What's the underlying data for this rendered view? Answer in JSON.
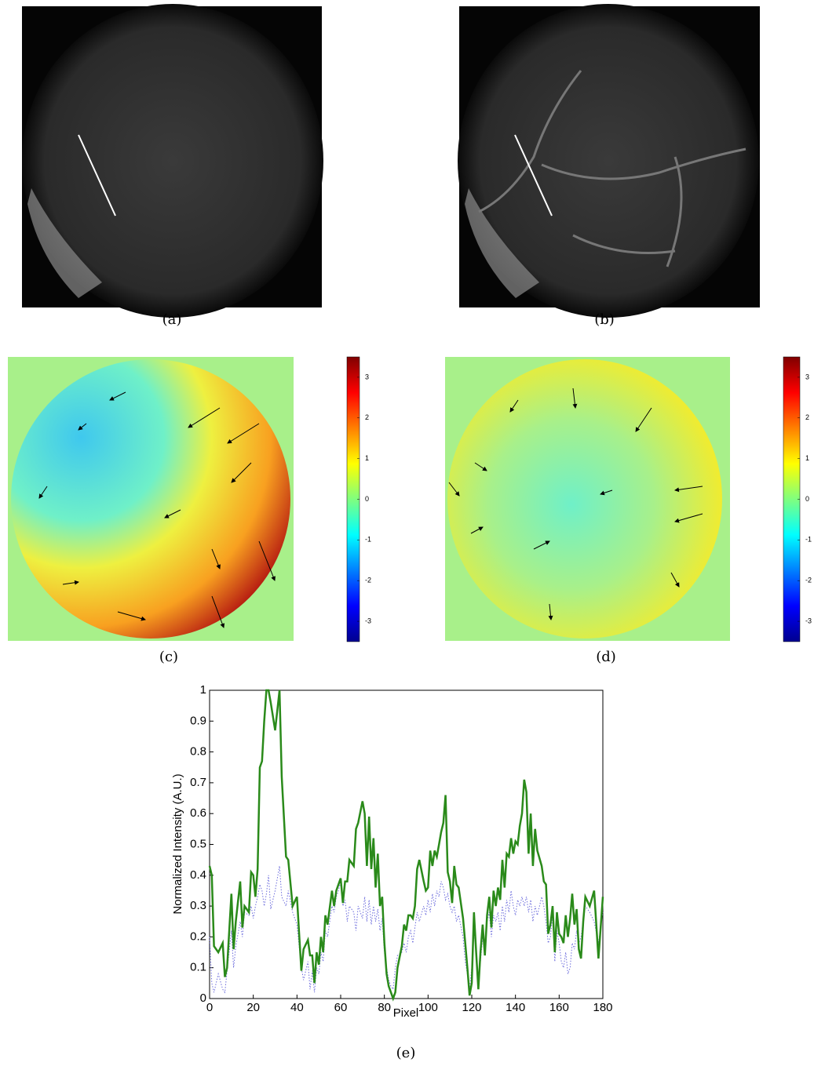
{
  "figure": {
    "captions": [
      "(a)",
      "(b)",
      "(c)",
      "(d)",
      "(e)"
    ],
    "colorbars": [
      {
        "ylim": [
          -3.5,
          3.5
        ],
        "yticks": [
          -3,
          -2,
          -1,
          0,
          1,
          2,
          3
        ]
      },
      {
        "ylim": [
          -3.5,
          3.5
        ],
        "yticks": [
          -3,
          -2,
          -1,
          0,
          1,
          2,
          3
        ]
      }
    ]
  },
  "chart_data": {
    "type": "line",
    "xlabel": "Pixel",
    "ylabel": "Normalized Intensity (A.U.)",
    "x": [
      0,
      1,
      2,
      4,
      6,
      7,
      8,
      10,
      11,
      12,
      14,
      15,
      16,
      18,
      19,
      20,
      21,
      22,
      23,
      24,
      25,
      26,
      27,
      28,
      30,
      32,
      33,
      35,
      36,
      38,
      40,
      42,
      43,
      45,
      46,
      47,
      48,
      49,
      50,
      51,
      52,
      53,
      54,
      56,
      57,
      58,
      59,
      60,
      61,
      62,
      63,
      64,
      66,
      67,
      68,
      70,
      71,
      72,
      73,
      74,
      75,
      76,
      77,
      78,
      79,
      80,
      81,
      82,
      83,
      84,
      85,
      86,
      88,
      89,
      90,
      91,
      92,
      93,
      94,
      95,
      96,
      98,
      99,
      100,
      101,
      102,
      103,
      104,
      105,
      106,
      107,
      108,
      109,
      110,
      111,
      112,
      113,
      114,
      116,
      117,
      118,
      119,
      120,
      121,
      122,
      123,
      124,
      125,
      126,
      127,
      128,
      129,
      130,
      131,
      132,
      133,
      134,
      135,
      136,
      137,
      138,
      139,
      140,
      141,
      142,
      143,
      144,
      145,
      146,
      147,
      148,
      149,
      150,
      152,
      153,
      154,
      155,
      156,
      157,
      158,
      159,
      160,
      161,
      162,
      163,
      164,
      165,
      166,
      167,
      168,
      169,
      170,
      171,
      172,
      174,
      176,
      178,
      180
    ],
    "series": [
      {
        "color": "#2a8a1a",
        "style": "solid",
        "values": [
          0.43,
          0.4,
          0.17,
          0.15,
          0.18,
          0.07,
          0.1,
          0.34,
          0.16,
          0.25,
          0.38,
          0.23,
          0.3,
          0.28,
          0.41,
          0.4,
          0.33,
          0.42,
          0.75,
          0.77,
          0.9,
          1.0,
          1.0,
          0.96,
          0.87,
          1.0,
          0.72,
          0.46,
          0.45,
          0.3,
          0.33,
          0.09,
          0.16,
          0.19,
          0.14,
          0.14,
          0.05,
          0.15,
          0.11,
          0.2,
          0.15,
          0.27,
          0.24,
          0.35,
          0.3,
          0.35,
          0.37,
          0.39,
          0.31,
          0.38,
          0.38,
          0.45,
          0.43,
          0.55,
          0.57,
          0.64,
          0.6,
          0.43,
          0.59,
          0.42,
          0.52,
          0.36,
          0.47,
          0.3,
          0.33,
          0.18,
          0.08,
          0.04,
          0.02,
          0.0,
          0.02,
          0.1,
          0.17,
          0.24,
          0.22,
          0.27,
          0.27,
          0.26,
          0.3,
          0.42,
          0.45,
          0.38,
          0.35,
          0.36,
          0.48,
          0.43,
          0.48,
          0.46,
          0.5,
          0.54,
          0.57,
          0.66,
          0.41,
          0.38,
          0.31,
          0.43,
          0.37,
          0.36,
          0.26,
          0.18,
          0.1,
          0.01,
          0.05,
          0.28,
          0.15,
          0.03,
          0.15,
          0.24,
          0.14,
          0.27,
          0.33,
          0.23,
          0.35,
          0.3,
          0.36,
          0.32,
          0.45,
          0.36,
          0.47,
          0.46,
          0.52,
          0.47,
          0.51,
          0.5,
          0.56,
          0.6,
          0.71,
          0.67,
          0.47,
          0.6,
          0.43,
          0.55,
          0.48,
          0.43,
          0.38,
          0.37,
          0.21,
          0.24,
          0.3,
          0.15,
          0.28,
          0.21,
          0.2,
          0.18,
          0.27,
          0.2,
          0.26,
          0.34,
          0.24,
          0.29,
          0.16,
          0.13,
          0.25,
          0.33,
          0.3,
          0.35,
          0.13,
          0.33
        ]
      },
      {
        "color": "#6b6bdc",
        "style": "dotted",
        "values": [
          0.2,
          0.05,
          0.02,
          0.08,
          0.03,
          0.02,
          0.09,
          0.22,
          0.1,
          0.17,
          0.25,
          0.2,
          0.28,
          0.27,
          0.3,
          0.26,
          0.3,
          0.33,
          0.37,
          0.35,
          0.3,
          0.34,
          0.4,
          0.29,
          0.35,
          0.43,
          0.33,
          0.3,
          0.35,
          0.28,
          0.24,
          0.1,
          0.06,
          0.12,
          0.03,
          0.09,
          0.02,
          0.1,
          0.08,
          0.15,
          0.12,
          0.22,
          0.2,
          0.3,
          0.28,
          0.33,
          0.35,
          0.38,
          0.3,
          0.32,
          0.25,
          0.3,
          0.28,
          0.22,
          0.3,
          0.26,
          0.33,
          0.25,
          0.32,
          0.24,
          0.3,
          0.25,
          0.29,
          0.22,
          0.26,
          0.15,
          0.1,
          0.06,
          0.04,
          0.03,
          0.1,
          0.14,
          0.15,
          0.18,
          0.15,
          0.2,
          0.22,
          0.18,
          0.23,
          0.28,
          0.25,
          0.3,
          0.27,
          0.32,
          0.28,
          0.34,
          0.3,
          0.35,
          0.33,
          0.38,
          0.36,
          0.32,
          0.34,
          0.3,
          0.28,
          0.3,
          0.25,
          0.27,
          0.2,
          0.12,
          0.08,
          0.03,
          0.1,
          0.22,
          0.15,
          0.04,
          0.12,
          0.2,
          0.15,
          0.25,
          0.28,
          0.2,
          0.27,
          0.25,
          0.28,
          0.22,
          0.3,
          0.25,
          0.32,
          0.28,
          0.35,
          0.3,
          0.27,
          0.32,
          0.3,
          0.33,
          0.3,
          0.33,
          0.28,
          0.32,
          0.25,
          0.3,
          0.27,
          0.33,
          0.3,
          0.25,
          0.18,
          0.2,
          0.27,
          0.12,
          0.22,
          0.18,
          0.12,
          0.1,
          0.15,
          0.08,
          0.1,
          0.18,
          0.16,
          0.22,
          0.18,
          0.2,
          0.25,
          0.3,
          0.28,
          0.25,
          0.18,
          0.28
        ]
      }
    ],
    "xlim": [
      0,
      180
    ],
    "ylim": [
      0,
      1
    ],
    "xticks": [
      0,
      20,
      40,
      60,
      80,
      100,
      120,
      140,
      160,
      180
    ],
    "yticks": [
      0,
      0.1,
      0.2,
      0.3,
      0.4,
      0.5,
      0.6,
      0.7,
      0.8,
      0.9,
      1
    ]
  }
}
